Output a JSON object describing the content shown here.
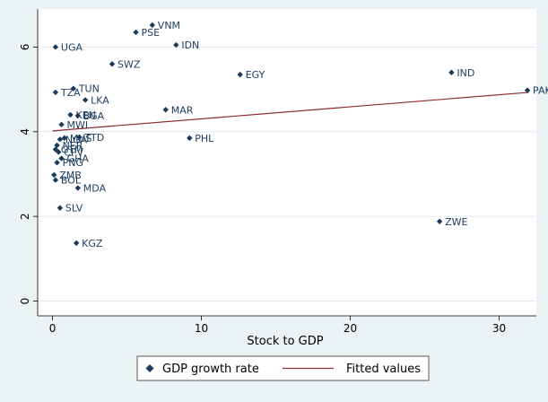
{
  "chart_data": {
    "type": "scatter",
    "title": "",
    "xlabel": "Stock to GDP",
    "ylabel": "",
    "xlim": [
      -1,
      32.5
    ],
    "ylim": [
      -0.35,
      6.9
    ],
    "xticks": [
      0,
      10,
      20,
      30
    ],
    "yticks": [
      0,
      2,
      4,
      6
    ],
    "grid": "horizontal",
    "legend_position": "bottom",
    "colors": {
      "background": "#eaf2f3",
      "plot_background": "#ffffff",
      "grid": "#e2eaed",
      "marker": "#1a3b5c",
      "fit_line": "#8b2c2c"
    },
    "series": [
      {
        "name": "GDP growth rate",
        "kind": "scatter",
        "marker": "diamond",
        "points": [
          {
            "label": "VNM",
            "x": 6.7,
            "y": 6.52
          },
          {
            "label": "PSE",
            "x": 5.6,
            "y": 6.35
          },
          {
            "label": "IDN",
            "x": 8.3,
            "y": 6.05
          },
          {
            "label": "UGA",
            "x": 0.2,
            "y": 6.0
          },
          {
            "label": "SWZ",
            "x": 4.0,
            "y": 5.6
          },
          {
            "label": "IND",
            "x": 26.8,
            "y": 5.4
          },
          {
            "label": "EGY",
            "x": 12.6,
            "y": 5.35
          },
          {
            "label": "TUN",
            "x": 1.4,
            "y": 5.02
          },
          {
            "label": "PAK",
            "x": 31.9,
            "y": 4.98
          },
          {
            "label": "TZA",
            "x": 0.2,
            "y": 4.93
          },
          {
            "label": "LKA",
            "x": 2.2,
            "y": 4.75
          },
          {
            "label": "MAR",
            "x": 7.6,
            "y": 4.52
          },
          {
            "label": "KEN",
            "x": 1.2,
            "y": 4.4
          },
          {
            "label": "BGA",
            "x": 1.7,
            "y": 4.38
          },
          {
            "label": "MWI",
            "x": 0.6,
            "y": 4.17
          },
          {
            "label": "PHL",
            "x": 9.2,
            "y": 3.85
          },
          {
            "label": "TTD",
            "x": 1.8,
            "y": 3.87
          },
          {
            "label": "NGA",
            "x": 0.5,
            "y": 3.82
          },
          {
            "label": "MUS",
            "x": 0.8,
            "y": 3.85
          },
          {
            "label": "NER",
            "x": 0.3,
            "y": 3.68
          },
          {
            "label": "GTM",
            "x": 0.2,
            "y": 3.58
          },
          {
            "label": "CPV",
            "x": 0.4,
            "y": 3.52
          },
          {
            "label": "GHA",
            "x": 0.6,
            "y": 3.37
          },
          {
            "label": "PNG",
            "x": 0.3,
            "y": 3.27
          },
          {
            "label": "ZMB",
            "x": 0.1,
            "y": 2.98
          },
          {
            "label": "BOL",
            "x": 0.2,
            "y": 2.86
          },
          {
            "label": "MDA",
            "x": 1.7,
            "y": 2.67
          },
          {
            "label": "SLV",
            "x": 0.5,
            "y": 2.2
          },
          {
            "label": "ZWE",
            "x": 26.0,
            "y": 1.88
          },
          {
            "label": "KGZ",
            "x": 1.6,
            "y": 1.37
          }
        ]
      },
      {
        "name": "Fitted values",
        "kind": "line",
        "x": [
          0,
          32
        ],
        "values": [
          4.02,
          4.93
        ]
      }
    ]
  }
}
